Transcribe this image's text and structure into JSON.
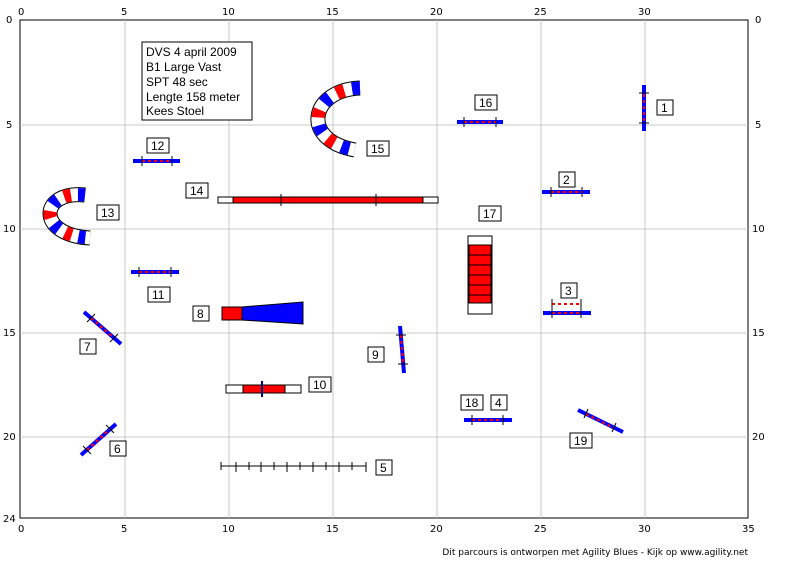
{
  "axis": {
    "top_ticks": [
      "0",
      "5",
      "10",
      "15",
      "20",
      "25",
      "30"
    ],
    "bottom_ticks": [
      "0",
      "5",
      "10",
      "15",
      "20",
      "25",
      "30",
      "35"
    ],
    "left_ticks": [
      "0",
      "5",
      "10",
      "15",
      "20"
    ],
    "right_ticks": [
      "0",
      "5",
      "10",
      "15",
      "20"
    ],
    "bottom_left_label": "24"
  },
  "info": {
    "line1": "DVS 4 april 2009",
    "line2": "B1 Large Vast",
    "line3": "SPT 48 sec",
    "line4": "Lengte 158 meter",
    "line5": "Kees Stoel"
  },
  "obstacles": {
    "n1": "1",
    "n2": "2",
    "n3": "3",
    "n4": "4",
    "n5": "5",
    "n6": "6",
    "n7": "7",
    "n8": "8",
    "n9": "9",
    "n10": "10",
    "n11": "11",
    "n12": "12",
    "n13": "13",
    "n14": "14",
    "n15": "15",
    "n16": "16",
    "n17": "17",
    "n18": "18",
    "n19": "19"
  },
  "footer": "Dit parcours is ontworpen met Agility Blues - Kijk op www.agility.net",
  "colors": {
    "blue": "#0000ff",
    "red": "#ff0000",
    "navy": "#000080",
    "grid": "#c0c0c0"
  }
}
